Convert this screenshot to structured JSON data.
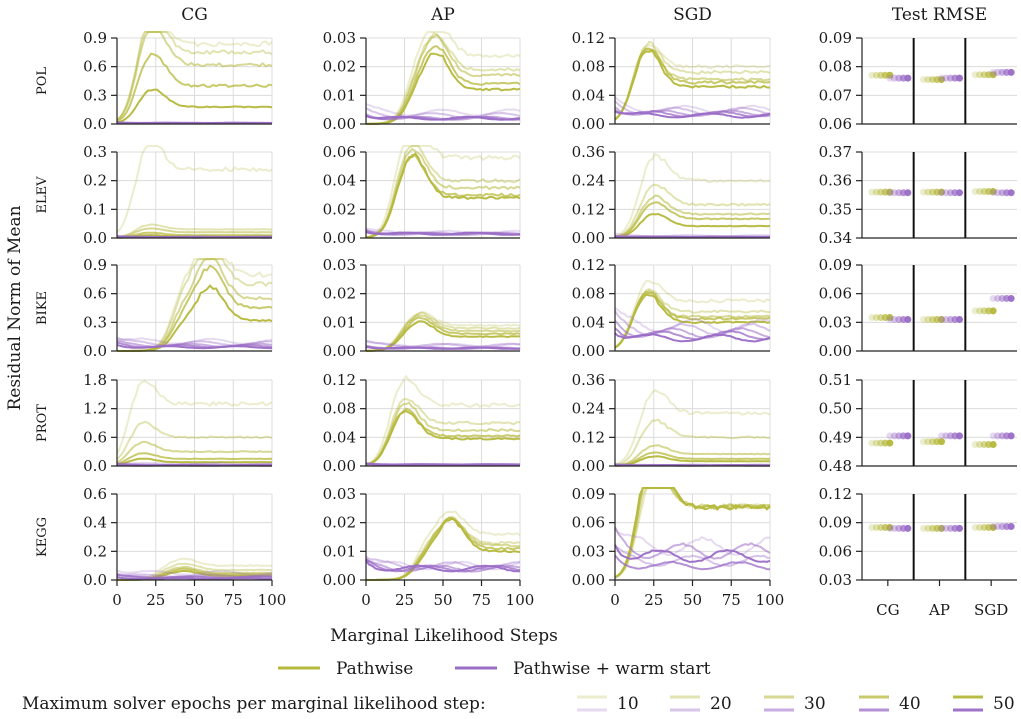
{
  "figure": {
    "ylabel": "Residual Norm of Mean",
    "xlabel": "Marginal Likelihood Steps",
    "legend": {
      "methods": [
        {
          "name": "Pathwise",
          "color": "#b5b83a"
        },
        {
          "name": "Pathwise + warm start",
          "color": "#9a6cc6"
        }
      ],
      "epochs_label": "Maximum solver epochs per marginal likelihood step:",
      "epochs": [
        "10",
        "20",
        "30",
        "40",
        "50"
      ]
    }
  },
  "chart_data": {
    "type": "line",
    "columns": [
      "CG",
      "AP",
      "SGD",
      "Test RMSE"
    ],
    "rows": [
      "POL",
      "ELEV",
      "BIKE",
      "PROT",
      "KEGG"
    ],
    "x_ticks": [
      0,
      25,
      50,
      75,
      100
    ],
    "xlim": [
      0,
      100
    ],
    "test_rmse_categories": [
      "CG",
      "AP",
      "SGD"
    ],
    "panels": [
      [
        {
          "ylim": [
            0,
            0.9
          ],
          "yticks": [
            "0.0",
            "0.3",
            "0.6",
            "0.9"
          ],
          "finals": [
            0.84,
            0.75,
            0.62,
            0.4,
            0.18
          ],
          "warm": [
            0.01,
            0.01,
            0.01,
            0.01,
            0.01
          ],
          "peak": 22
        },
        {
          "ylim": [
            0,
            0.03
          ],
          "yticks": [
            "0.00",
            "0.01",
            "0.02",
            "0.03"
          ],
          "finals": [
            0.024,
            0.019,
            0.017,
            0.014,
            0.012
          ],
          "warm": [
            0.004,
            0.003,
            0.002,
            0.002,
            0.002
          ],
          "peak": 45
        },
        {
          "ylim": [
            0,
            0.12
          ],
          "yticks": [
            "0.00",
            "0.04",
            "0.08",
            "0.12"
          ],
          "finals": [
            0.08,
            0.072,
            0.062,
            0.058,
            0.052
          ],
          "warm": [
            0.02,
            0.018,
            0.015,
            0.014,
            0.012
          ],
          "peak": 20
        },
        {
          "ylim": [
            0.06,
            0.09
          ],
          "yticks": [
            "0.06",
            "0.07",
            "0.08",
            "0.09"
          ],
          "pathwise": [
            0.077,
            0.0755,
            0.0772
          ],
          "warm": [
            0.076,
            0.076,
            0.078
          ]
        }
      ],
      [
        {
          "ylim": [
            0,
            0.3
          ],
          "yticks": [
            "0.0",
            "0.1",
            "0.2",
            "0.3"
          ],
          "finals": [
            0.24,
            0.03,
            0.02,
            0.01,
            0.005
          ],
          "warm": [
            0.005,
            0.004,
            0.003,
            0.003,
            0.002
          ],
          "peak": 20
        },
        {
          "ylim": [
            0,
            0.06
          ],
          "yticks": [
            "0.00",
            "0.02",
            "0.04",
            "0.06"
          ],
          "finals": [
            0.056,
            0.04,
            0.035,
            0.03,
            0.028
          ],
          "warm": [
            0.004,
            0.003,
            0.003,
            0.003,
            0.003
          ],
          "peak": 30
        },
        {
          "ylim": [
            0,
            0.36
          ],
          "yticks": [
            "0.00",
            "0.12",
            "0.24",
            "0.36"
          ],
          "finals": [
            0.24,
            0.14,
            0.1,
            0.08,
            0.05
          ],
          "warm": [
            0.01,
            0.005,
            0.005,
            0.005,
            0.005
          ],
          "peak": 25
        },
        {
          "ylim": [
            0.34,
            0.37
          ],
          "yticks": [
            "0.34",
            "0.35",
            "0.36",
            "0.37"
          ],
          "pathwise": [
            0.356,
            0.356,
            0.3562
          ],
          "warm": [
            0.3558,
            0.3558,
            0.3558
          ]
        }
      ],
      [
        {
          "ylim": [
            0,
            0.9
          ],
          "yticks": [
            "0.0",
            "0.3",
            "0.6",
            "0.9"
          ],
          "finals": [
            0.8,
            0.7,
            0.55,
            0.45,
            0.32
          ],
          "warm": [
            0.1,
            0.08,
            0.06,
            0.05,
            0.04
          ],
          "peak": 60
        },
        {
          "ylim": [
            0,
            0.03
          ],
          "yticks": [
            "0.00",
            "0.01",
            "0.02",
            "0.03"
          ],
          "finals": [
            0.009,
            0.008,
            0.007,
            0.006,
            0.005
          ],
          "warm": [
            0.002,
            0.002,
            0.001,
            0.001,
            0.001
          ],
          "peak": 35
        },
        {
          "ylim": [
            0,
            0.12
          ],
          "yticks": [
            "0.00",
            "0.04",
            "0.08",
            "0.12"
          ],
          "finals": [
            0.07,
            0.055,
            0.048,
            0.045,
            0.04
          ],
          "warm": [
            0.035,
            0.03,
            0.025,
            0.022,
            0.018
          ],
          "peak": 20
        },
        {
          "ylim": [
            0.0,
            0.09
          ],
          "yticks": [
            "0.00",
            "0.03",
            "0.06",
            "0.09"
          ],
          "pathwise": [
            0.035,
            0.033,
            0.042
          ],
          "warm": [
            0.033,
            0.033,
            0.055
          ]
        }
      ],
      [
        {
          "ylim": [
            0,
            1.8
          ],
          "yticks": [
            "0.0",
            "0.6",
            "1.2",
            "1.8"
          ],
          "finals": [
            1.3,
            0.6,
            0.3,
            0.15,
            0.08
          ],
          "warm": [
            0.05,
            0.03,
            0.02,
            0.02,
            0.01
          ],
          "peak": 15
        },
        {
          "ylim": [
            0,
            0.12
          ],
          "yticks": [
            "0.00",
            "0.04",
            "0.08",
            "0.12"
          ],
          "finals": [
            0.085,
            0.06,
            0.05,
            0.042,
            0.038
          ],
          "warm": [
            0.002,
            0.002,
            0.002,
            0.002,
            0.002
          ],
          "peak": 25
        },
        {
          "ylim": [
            0,
            0.36
          ],
          "yticks": [
            "0.00",
            "0.12",
            "0.24",
            "0.36"
          ],
          "finals": [
            0.22,
            0.12,
            0.05,
            0.03,
            0.02
          ],
          "warm": [
            0.005,
            0.004,
            0.003,
            0.003,
            0.002
          ],
          "peak": 25
        },
        {
          "ylim": [
            0.48,
            0.51
          ],
          "yticks": [
            "0.48",
            "0.49",
            "0.50",
            "0.51"
          ],
          "pathwise": [
            0.488,
            0.4885,
            0.4875
          ],
          "warm": [
            0.4905,
            0.4905,
            0.4905
          ]
        }
      ],
      [
        {
          "ylim": [
            0,
            0.6
          ],
          "yticks": [
            "0.0",
            "0.2",
            "0.4",
            "0.6"
          ],
          "finals": [
            0.1,
            0.07,
            0.05,
            0.04,
            0.03
          ],
          "warm": [
            0.05,
            0.03,
            0.02,
            0.02,
            0.01
          ],
          "peak": 43
        },
        {
          "ylim": [
            0,
            0.03
          ],
          "yticks": [
            "0.00",
            "0.01",
            "0.02",
            "0.03"
          ],
          "finals": [
            0.016,
            0.013,
            0.012,
            0.011,
            0.01
          ],
          "warm": [
            0.005,
            0.005,
            0.004,
            0.004,
            0.004
          ],
          "peak": 55
        },
        {
          "ylim": [
            0,
            0.09
          ],
          "yticks": [
            "0.00",
            "0.03",
            "0.06",
            "0.09"
          ],
          "finals": [
            0.078,
            0.077,
            0.077,
            0.076,
            0.076
          ],
          "warm": [
            0.035,
            0.02,
            0.03,
            0.015,
            0.025
          ],
          "peak": 25
        },
        {
          "ylim": [
            0.03,
            0.12
          ],
          "yticks": [
            "0.03",
            "0.06",
            "0.09",
            "0.12"
          ],
          "pathwise": [
            0.085,
            0.084,
            0.085
          ],
          "warm": [
            0.084,
            0.084,
            0.086
          ]
        }
      ]
    ]
  }
}
